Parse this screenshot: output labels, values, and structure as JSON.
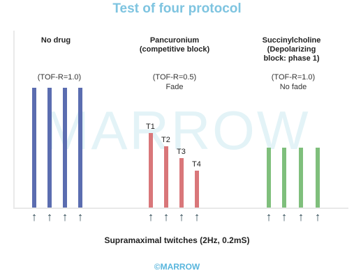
{
  "title": "Test of four protocol",
  "watermark": "MARROW",
  "groups": [
    {
      "header_line1": "No drug",
      "header_line2": "",
      "header_line3": "",
      "note_line1": "(TOF-R=1.0)",
      "note_line2": "",
      "bar_labels": [
        "",
        "",
        "",
        ""
      ]
    },
    {
      "header_line1": "Pancuronium",
      "header_line2": "(competitive block)",
      "header_line3": "",
      "note_line1": "(TOF-R=0.5)",
      "note_line2": "Fade",
      "bar_labels": [
        "T1",
        "T2",
        "T3",
        "T4"
      ]
    },
    {
      "header_line1": "Succinylcholine",
      "header_line2": "(Depolarizing",
      "header_line3": "block: phase 1)",
      "note_line1": "(TOF-R=1.0)",
      "note_line2": "No fade",
      "bar_labels": [
        "",
        "",
        "",
        ""
      ]
    }
  ],
  "bar_heights_fraction": [
    [
      1.0,
      1.0,
      1.0,
      1.0
    ],
    [
      0.62,
      0.51,
      0.41,
      0.31
    ],
    [
      0.5,
      0.5,
      0.5,
      0.5
    ]
  ],
  "caption": "Supramaximal twitches (2Hz, 0.2mS)",
  "footer": "©MARROW",
  "colors": {
    "no_drug": "#5b6db0",
    "pancuronium": "#d9777a",
    "succinylcholine": "#7fbf7c",
    "title": "#7ec4e0"
  }
}
